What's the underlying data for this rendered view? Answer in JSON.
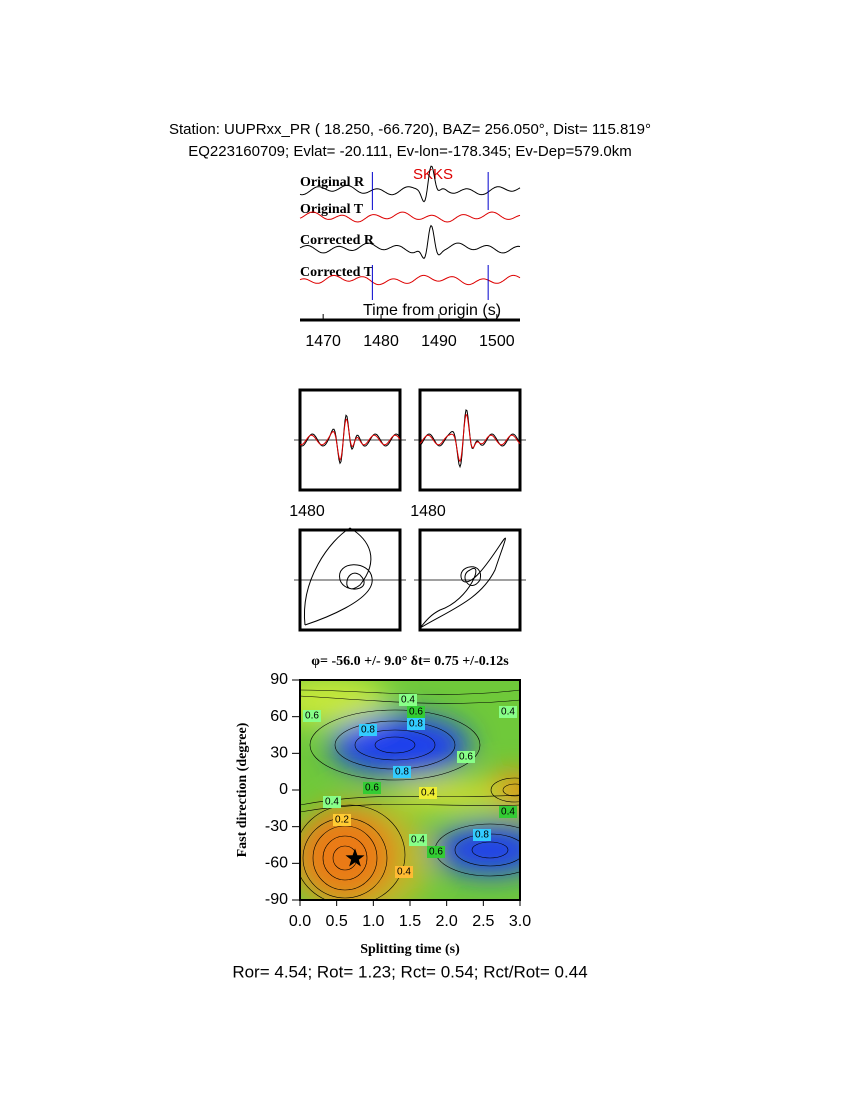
{
  "header": {
    "line1": "Station: UUPRxx_PR (  18.250,  -66.720), BAZ=  256.050°, Dist=  115.819°",
    "line2": "EQ223160709; Evlat= -20.111, Ev-lon=-178.345; Ev-Dep=579.0km"
  },
  "traces": {
    "phase": "SKKS",
    "labels": [
      "Original R",
      "Original T",
      "Corrected R",
      "Corrected T"
    ],
    "xlabel": "Time from origin (s)",
    "xlim": [
      1466,
      1504
    ],
    "xticks": [
      1470,
      1480,
      1490,
      1500
    ],
    "window": [
      1478.5,
      1498.5
    ]
  },
  "particles": {
    "xtick_left": 1480,
    "xtick_right": 1480
  },
  "grid": {
    "title": "φ= -56.0 +/- 9.0° δt= 0.75 +/-0.12s",
    "xlabel": "Splitting time (s)",
    "ylabel": "Fast direction (degree)",
    "xlim": [
      0,
      3
    ],
    "ylim": [
      -90,
      90
    ],
    "xticks": [
      {
        "value": 0,
        "label": "0.0"
      },
      {
        "value": 0.5,
        "label": "0.5"
      },
      {
        "value": 1,
        "label": "1.0"
      },
      {
        "value": 1.5,
        "label": "1.5"
      },
      {
        "value": 2,
        "label": "2.0"
      },
      {
        "value": 2.5,
        "label": "2.5"
      },
      {
        "value": 3,
        "label": "3.0"
      }
    ],
    "yticks": [
      -90,
      -60,
      -30,
      0,
      30,
      60,
      90
    ],
    "best": {
      "dt": 0.75,
      "phi": -56
    },
    "contour_labels": [
      "0.4",
      "0.6",
      "0.8",
      "0.4",
      "0.6",
      "0.8",
      "0.8",
      "0.6",
      "0.4",
      "0.6",
      "0.4",
      "0.2",
      "0.4",
      "0.4",
      "0.6",
      "0.8",
      "0.4"
    ]
  },
  "footer": "Ror= 4.54; Rot= 1.23; Rct= 0.54; Rct/Rot= 0.44"
}
